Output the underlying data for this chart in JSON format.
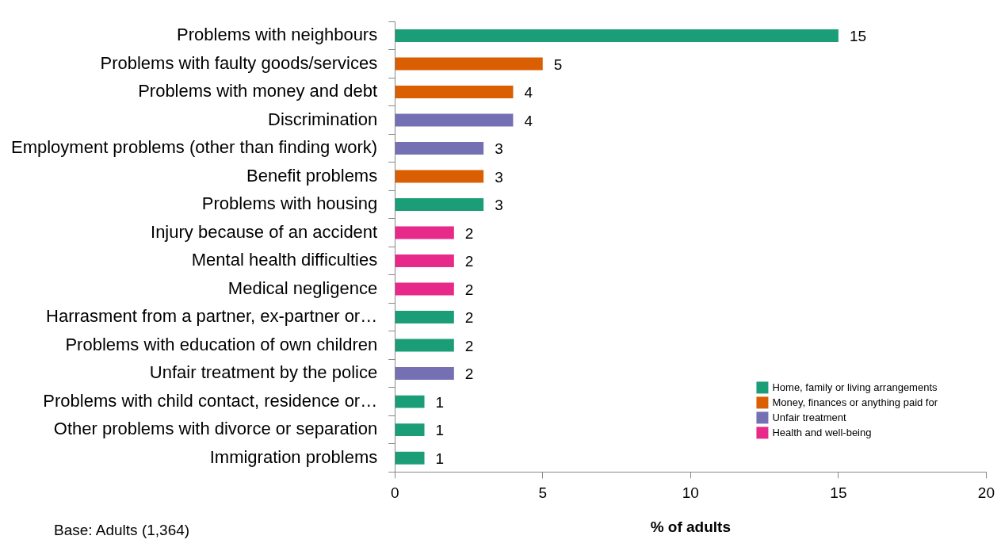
{
  "chart_data": {
    "type": "bar",
    "orientation": "horizontal",
    "categories": [
      "Problems with neighbours",
      "Problems with faulty goods/services",
      "Problems with money and debt",
      "Discrimination",
      "Employment problems (other than finding work)",
      "Benefit problems",
      "Problems with housing",
      "Injury because of an accident",
      "Mental health difficulties",
      "Medical negligence",
      "Harrasment from a partner, ex-partner or…",
      "Problems with education of own children",
      "Unfair treatment by the police",
      "Problems with child contact, residence or…",
      "Other problems with divorce or separation",
      "Immigration problems"
    ],
    "series": [
      {
        "name": "Home, family or living arrangements",
        "color": "#1b9e77",
        "values": [
          15,
          null,
          null,
          null,
          null,
          null,
          3,
          null,
          null,
          null,
          2,
          2,
          null,
          1,
          1,
          1
        ]
      },
      {
        "name": "Money, finances or anything paid for",
        "color": "#d95f02",
        "values": [
          null,
          5,
          4,
          null,
          null,
          3,
          null,
          null,
          null,
          null,
          null,
          null,
          null,
          null,
          null,
          null
        ]
      },
      {
        "name": "Unfair treatment",
        "color": "#7570b3",
        "values": [
          null,
          null,
          null,
          4,
          3,
          null,
          null,
          null,
          null,
          null,
          null,
          null,
          2,
          null,
          null,
          null
        ]
      },
      {
        "name": "Health and well-being",
        "color": "#e7298a",
        "values": [
          null,
          null,
          null,
          null,
          null,
          null,
          null,
          2,
          2,
          2,
          null,
          null,
          null,
          null,
          null,
          null
        ]
      }
    ],
    "xlim": [
      0,
      20
    ],
    "xticks": [
      0,
      5,
      10,
      15,
      20
    ],
    "xlabel": "% of adults",
    "grid": false,
    "legend": "bottom right",
    "data_labels": true,
    "annotations": [
      "Base: Adults (1,364)"
    ]
  }
}
